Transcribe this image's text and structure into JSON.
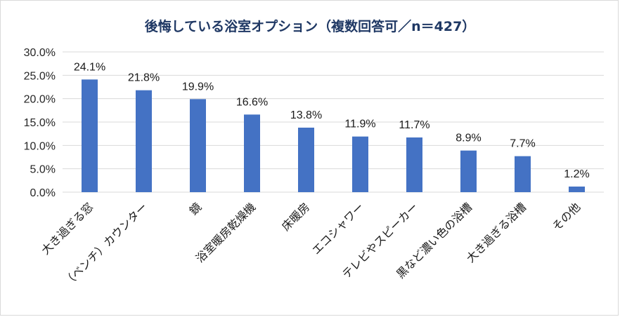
{
  "chart_data": {
    "type": "bar",
    "title": "後悔している浴室オプション（複数回答可／n＝427）",
    "xlabel": "",
    "ylabel": "",
    "ylim": [
      0,
      30
    ],
    "yticks": [
      "0.0%",
      "5.0%",
      "10.0%",
      "15.0%",
      "20.0%",
      "25.0%",
      "30.0%"
    ],
    "ytick_values": [
      0,
      5,
      10,
      15,
      20,
      25,
      30
    ],
    "grid": true,
    "bar_color": "#4472c4",
    "categories": [
      "大き過ぎる窓",
      "（ベンチ）カウンター",
      "鏡",
      "浴室暖房乾燥機",
      "床暖房",
      "エコシャワー",
      "テレビやスピーカー",
      "黒など濃い色の浴槽",
      "大き過ぎる浴槽",
      "その他"
    ],
    "values": [
      24.1,
      21.8,
      19.9,
      16.6,
      13.8,
      11.9,
      11.7,
      8.9,
      7.7,
      1.2
    ],
    "value_labels": [
      "24.1%",
      "21.8%",
      "19.9%",
      "16.6%",
      "13.8%",
      "11.9%",
      "11.7%",
      "8.9%",
      "7.7%",
      "1.2%"
    ]
  }
}
